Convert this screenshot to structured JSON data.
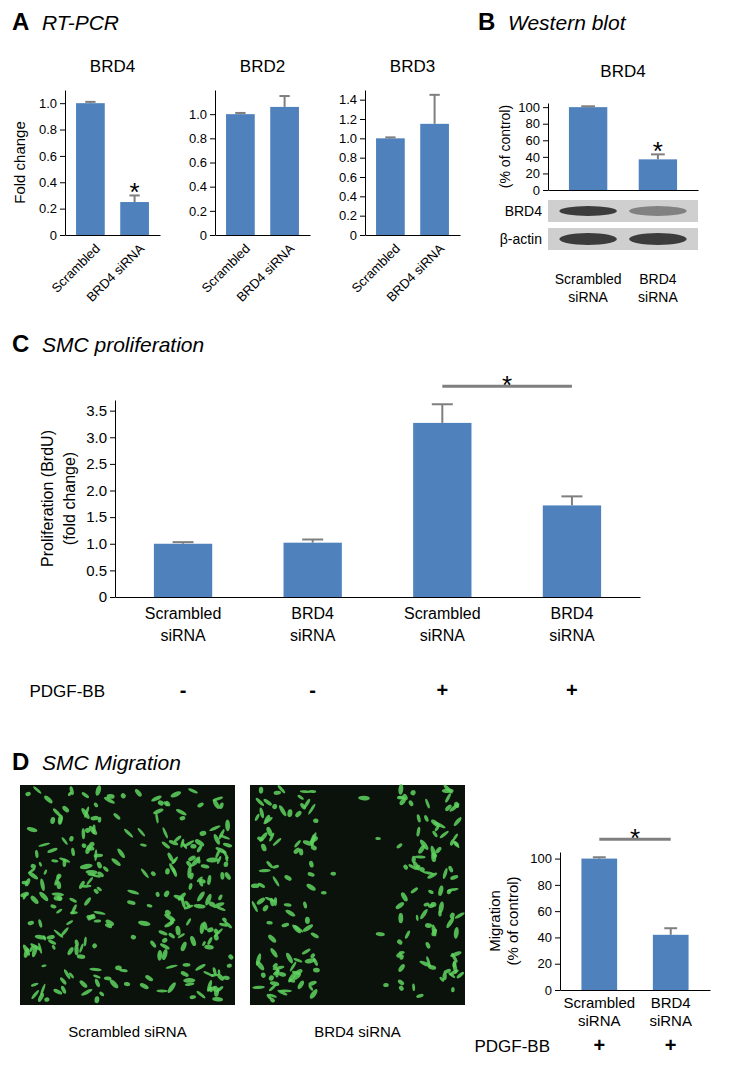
{
  "chart_data": [
    {
      "type": "bar",
      "panel": "A",
      "panel_title": "RT-PCR",
      "title": "BRD4",
      "ylabel": [
        "Fold change"
      ],
      "categories": [
        "Scrambled",
        "BRD4 siRNA"
      ],
      "values": [
        1.0,
        0.25
      ],
      "errors": [
        0.01,
        0.05
      ],
      "color": "#4f81bd",
      "ylim": [
        0,
        1.1
      ],
      "yticks": [
        0,
        0.2,
        0.4,
        0.6,
        0.8,
        {
          "value": 1,
          "label": "1.0"
        }
      ],
      "significance": [
        {
          "label": "*",
          "between": [
            1
          ]
        }
      ]
    },
    {
      "type": "bar",
      "title": "BRD2",
      "categories": [
        "Scrambled",
        "BRD4 siRNA"
      ],
      "values": [
        1.0,
        1.06
      ],
      "errors": [
        0.01,
        0.09
      ],
      "color": "#4f81bd",
      "ylim": [
        0,
        1.2
      ],
      "yticks": [
        0,
        0.2,
        0.4,
        0.6,
        0.8,
        {
          "value": 1,
          "label": "1.0"
        }
      ]
    },
    {
      "type": "bar",
      "title": "BRD3",
      "categories": [
        "Scrambled",
        "BRD4 siRNA"
      ],
      "values": [
        1.0,
        1.15
      ],
      "errors": [
        0.01,
        0.3
      ],
      "color": "#4f81bd",
      "ylim": [
        0,
        1.5
      ],
      "yticks": [
        0,
        0.2,
        0.4,
        0.6,
        0.8,
        {
          "value": 1,
          "label": "1.0"
        },
        1.2,
        1.4
      ]
    },
    {
      "type": "bar",
      "panel": "B",
      "panel_title": "Western blot",
      "title": "BRD4",
      "ylabel": [
        "(% of control)"
      ],
      "categories": [
        "Scrambled siRNA",
        "BRD4 siRNA"
      ],
      "values": [
        100,
        37
      ],
      "errors": [
        1,
        6
      ],
      "color": "#4f81bd",
      "ylim": [
        0,
        105
      ],
      "yticks": [
        0,
        20,
        40,
        60,
        80,
        100
      ],
      "significance": [
        {
          "label": "*",
          "between": [
            1
          ]
        }
      ],
      "blot": {
        "rows": [
          "BRD4",
          "β-actin"
        ]
      }
    },
    {
      "type": "bar",
      "panel": "C",
      "panel_title": "SMC proliferation",
      "ylabel": [
        "Proliferation (BrdU)",
        "(fold change)"
      ],
      "categories": [
        "Scrambled siRNA",
        "BRD4 siRNA",
        "Scrambled siRNA",
        "BRD4 siRNA"
      ],
      "values": [
        1.0,
        1.02,
        3.27,
        1.72
      ],
      "errors": [
        0.03,
        0.06,
        0.35,
        0.17
      ],
      "color": "#4f81bd",
      "ylim": [
        0,
        3.7
      ],
      "yticks": [
        0,
        0.5,
        {
          "value": 1,
          "label": "1.0"
        },
        1.5,
        {
          "value": 2,
          "label": "2.0"
        },
        2.5,
        {
          "value": 3,
          "label": "3.0"
        },
        3.5
      ],
      "conditions": {
        "name": "PDGF-BB",
        "values": [
          "-",
          "-",
          "+",
          "+"
        ]
      },
      "significance": [
        {
          "label": "*",
          "between": [
            2,
            3
          ]
        }
      ]
    },
    {
      "type": "bar",
      "panel": "D",
      "panel_title": "SMC Migration",
      "ylabel": [
        "Migration",
        "(% of control)"
      ],
      "categories": [
        "Scrambled siRNA",
        "BRD4 siRNA"
      ],
      "values": [
        100,
        42
      ],
      "errors": [
        1,
        5
      ],
      "color": "#4f81bd",
      "ylim": [
        0,
        105
      ],
      "yticks": [
        0,
        20,
        40,
        60,
        80,
        100
      ],
      "conditions": {
        "name": "PDGF-BB",
        "values": [
          "+",
          "+"
        ]
      },
      "significance": [
        {
          "label": "*",
          "between": [
            0,
            1
          ]
        }
      ],
      "image_captions": [
        "Scrambled siRNA",
        "BRD4 siRNA"
      ]
    }
  ]
}
